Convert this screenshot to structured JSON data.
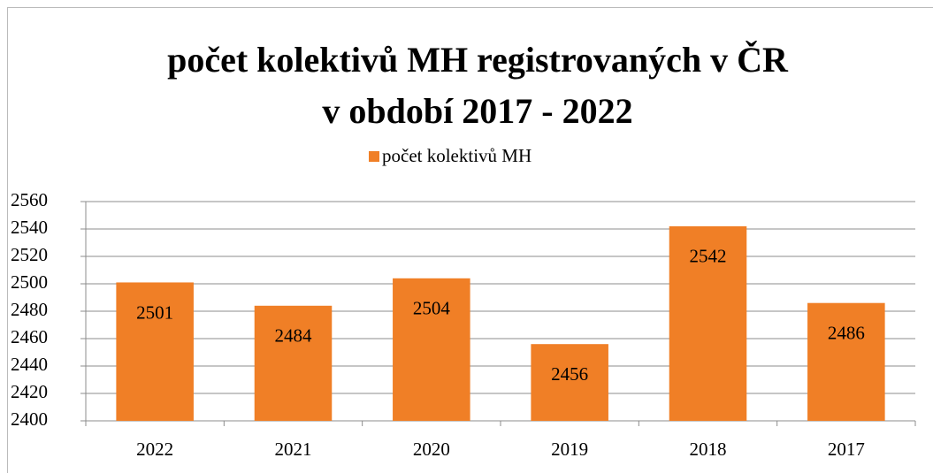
{
  "chart_data": {
    "type": "bar",
    "title": [
      "počet kolektivů MH registrovaných v ČR",
      "v období 2017 - 2022"
    ],
    "categories": [
      "2022",
      "2021",
      "2020",
      "2019",
      "2018",
      "2017"
    ],
    "series": [
      {
        "name": "počet kolektivů MH",
        "color": "#f07f26",
        "values": [
          2501,
          2484,
          2504,
          2456,
          2542,
          2486
        ]
      }
    ],
    "ylim": [
      2400,
      2560
    ],
    "yticks": [
      2400,
      2420,
      2440,
      2460,
      2480,
      2500,
      2520,
      2540,
      2560
    ],
    "grid": true,
    "legend": "top"
  }
}
